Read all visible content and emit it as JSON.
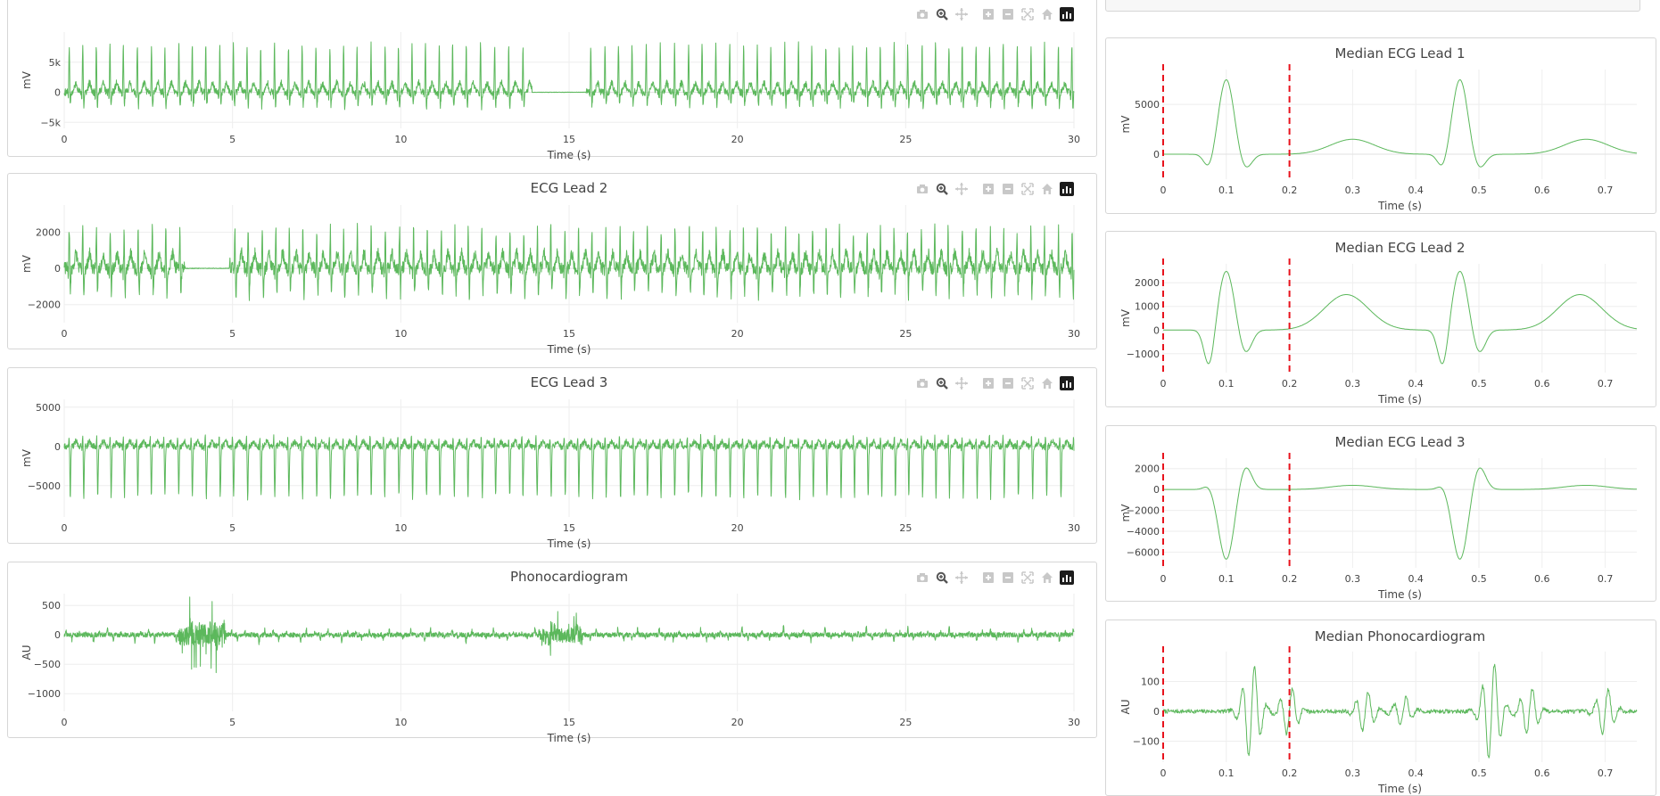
{
  "colors": {
    "trace": "#5cb85c",
    "marker": "#e8121c"
  },
  "modebar": [
    "camera-icon",
    "zoom-icon",
    "pan-icon",
    "zoom-in-icon",
    "zoom-out-icon",
    "autoscale-icon",
    "reset-axes-icon",
    "plotly-logo-icon"
  ],
  "chart_data": [
    {
      "id": "ecg1",
      "type": "line",
      "title": "",
      "xlabel": "Time (s)",
      "ylabel": "mV",
      "xlim": [
        0,
        30
      ],
      "ylim": [
        -6000,
        10000
      ],
      "xticks": [
        0,
        5,
        10,
        15,
        20,
        25,
        30
      ],
      "xtick_labels": [
        "0",
        "5",
        "10",
        "15",
        "20",
        "25",
        "30"
      ],
      "yticks": [
        -5000,
        0,
        5000
      ],
      "ytick_labels": [
        "−5k",
        "0",
        "5k"
      ],
      "series": [
        {
          "kind": "ecg",
          "hr_period": 0.41,
          "r_amp": 8000,
          "s_amp": -2500,
          "t_amp": 1500,
          "noise": 600,
          "flat": [
            13.9,
            15.5
          ],
          "seed": 11
        }
      ]
    },
    {
      "id": "ecg2",
      "type": "line",
      "title": "ECG Lead 2",
      "xlabel": "Time (s)",
      "ylabel": "mV",
      "xlim": [
        0,
        30
      ],
      "ylim": [
        -3000,
        3500
      ],
      "xticks": [
        0,
        5,
        10,
        15,
        20,
        25,
        30
      ],
      "xtick_labels": [
        "0",
        "5",
        "10",
        "15",
        "20",
        "25",
        "30"
      ],
      "yticks": [
        -2000,
        0,
        2000
      ],
      "ytick_labels": [
        "−2000",
        "0",
        "2000"
      ],
      "series": [
        {
          "kind": "ecg",
          "hr_period": 0.41,
          "r_amp": 2300,
          "s_amp": -1500,
          "t_amp": 800,
          "noise": 350,
          "flat": [
            3.6,
            4.9
          ],
          "seed": 23
        }
      ]
    },
    {
      "id": "ecg3",
      "type": "line",
      "title": "ECG Lead 3",
      "xlabel": "Time (s)",
      "ylabel": "mV",
      "xlim": [
        0,
        30
      ],
      "ylim": [
        -9000,
        6000
      ],
      "xticks": [
        0,
        5,
        10,
        15,
        20,
        25,
        30
      ],
      "xtick_labels": [
        "0",
        "5",
        "10",
        "15",
        "20",
        "25",
        "30"
      ],
      "yticks": [
        -5000,
        0,
        5000
      ],
      "ytick_labels": [
        "−5000",
        "0",
        "5000"
      ],
      "series": [
        {
          "kind": "ecg",
          "hr_period": 0.41,
          "r_amp": 1500,
          "s_amp": -6500,
          "t_amp": 600,
          "noise": 400,
          "flat": [],
          "seed": 37
        }
      ]
    },
    {
      "id": "pcg",
      "type": "line",
      "title": "Phonocardiogram",
      "xlabel": "Time (s)",
      "ylabel": "AU",
      "xlim": [
        0,
        30
      ],
      "ylim": [
        -1300,
        700
      ],
      "xticks": [
        0,
        5,
        10,
        15,
        20,
        25,
        30
      ],
      "xtick_labels": [
        "0",
        "5",
        "10",
        "15",
        "20",
        "25",
        "30"
      ],
      "yticks": [
        -1000,
        -500,
        0,
        500
      ],
      "ytick_labels": [
        "−1000",
        "−500",
        "0",
        "500"
      ],
      "series": [
        {
          "kind": "pcg",
          "hr_period": 0.41,
          "amp": 120,
          "noise": 40,
          "bursts": [
            [
              3.4,
              4.8,
              500
            ],
            [
              14.1,
              15.4,
              300
            ]
          ],
          "seed": 53
        }
      ]
    },
    {
      "id": "m1",
      "type": "line",
      "title": "Median ECG Lead 1",
      "xlabel": "Time (s)",
      "ylabel": "mV",
      "xlim": [
        0,
        0.75
      ],
      "ylim": [
        -2500,
        8500
      ],
      "xticks": [
        0,
        0.1,
        0.2,
        0.3,
        0.4,
        0.5,
        0.6,
        0.7
      ],
      "xtick_labels": [
        "0",
        "0.1",
        "0.2",
        "0.3",
        "0.4",
        "0.5",
        "0.6",
        "0.7"
      ],
      "yticks": [
        0,
        5000
      ],
      "ytick_labels": [
        "0",
        "5000"
      ],
      "markers": [
        0,
        0.2
      ],
      "series": [
        {
          "kind": "median",
          "beats": [
            0.1,
            0.47
          ],
          "r_amp": 7500,
          "q_amp": -1500,
          "s_amp": -1500,
          "t_amp": 1500,
          "t_off": 0.2
        }
      ]
    },
    {
      "id": "m2",
      "type": "line",
      "title": "Median ECG Lead 2",
      "xlabel": "Time (s)",
      "ylabel": "mV",
      "xlim": [
        0,
        0.75
      ],
      "ylim": [
        -1800,
        2800
      ],
      "xticks": [
        0,
        0.1,
        0.2,
        0.3,
        0.4,
        0.5,
        0.6,
        0.7
      ],
      "xtick_labels": [
        "0",
        "0.1",
        "0.2",
        "0.3",
        "0.4",
        "0.5",
        "0.6",
        "0.7"
      ],
      "yticks": [
        -1000,
        0,
        1000,
        2000
      ],
      "ytick_labels": [
        "−1000",
        "0",
        "1000",
        "2000"
      ],
      "markers": [
        0,
        0.2
      ],
      "series": [
        {
          "kind": "median",
          "beats": [
            0.1,
            0.47
          ],
          "r_amp": 2500,
          "q_amp": -1600,
          "s_amp": -1000,
          "t_amp": 1500,
          "t_off": 0.19
        }
      ]
    },
    {
      "id": "m3",
      "type": "line",
      "title": "Median ECG Lead 3",
      "xlabel": "Time (s)",
      "ylabel": "mV",
      "xlim": [
        0,
        0.75
      ],
      "ylim": [
        -7500,
        3000
      ],
      "xticks": [
        0,
        0.1,
        0.2,
        0.3,
        0.4,
        0.5,
        0.6,
        0.7
      ],
      "xtick_labels": [
        "0",
        "0.1",
        "0.2",
        "0.3",
        "0.4",
        "0.5",
        "0.6",
        "0.7"
      ],
      "yticks": [
        -6000,
        -4000,
        -2000,
        0,
        2000
      ],
      "ytick_labels": [
        "−6000",
        "−4000",
        "−2000",
        "0",
        "2000"
      ],
      "markers": [
        0,
        0.2
      ],
      "series": [
        {
          "kind": "median",
          "beats": [
            0.1,
            0.47
          ],
          "r_amp": -6700,
          "q_amp": 500,
          "s_amp": 2300,
          "t_amp": 400,
          "t_off": 0.2
        }
      ]
    },
    {
      "id": "mp",
      "type": "line",
      "title": "Median Phonocardiogram",
      "xlabel": "Time (s)",
      "ylabel": "AU",
      "xlim": [
        0,
        0.75
      ],
      "ylim": [
        -170,
        200
      ],
      "xticks": [
        0,
        0.1,
        0.2,
        0.3,
        0.4,
        0.5,
        0.6,
        0.7
      ],
      "xtick_labels": [
        "0",
        "0.1",
        "0.2",
        "0.3",
        "0.4",
        "0.5",
        "0.6",
        "0.7"
      ],
      "yticks": [
        -100,
        0,
        100
      ],
      "ytick_labels": [
        "−100",
        "0",
        "100"
      ],
      "markers": [
        0,
        0.2
      ],
      "series": [
        {
          "kind": "medpcg",
          "events": [
            [
              0.14,
              160
            ],
            [
              0.2,
              80
            ],
            [
              0.32,
              70
            ],
            [
              0.38,
              50
            ],
            [
              0.52,
              170
            ],
            [
              0.58,
              80
            ],
            [
              0.7,
              80
            ]
          ]
        }
      ]
    }
  ]
}
